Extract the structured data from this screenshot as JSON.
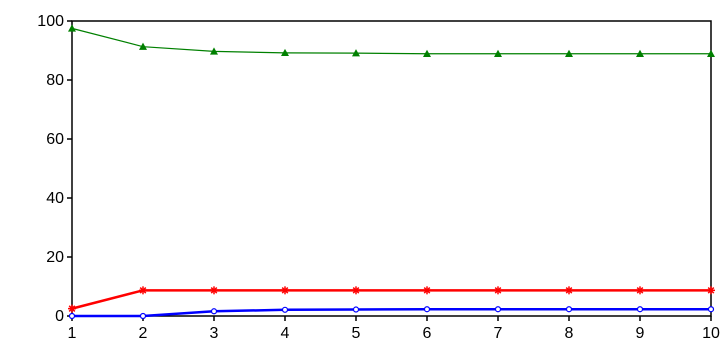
{
  "chart_data": {
    "type": "line",
    "title": "",
    "xlabel": "",
    "ylabel": "",
    "x": [
      1,
      2,
      3,
      4,
      5,
      6,
      7,
      8,
      9,
      10
    ],
    "xlim": [
      1,
      10
    ],
    "ylim": [
      0,
      100
    ],
    "x_ticks": [
      1,
      2,
      3,
      4,
      5,
      6,
      7,
      8,
      9,
      10
    ],
    "y_ticks": [
      0,
      20,
      40,
      60,
      80,
      100
    ],
    "x_tick_labels": [
      "1",
      "2",
      "3",
      "4",
      "5",
      "6",
      "7",
      "8",
      "9",
      "10"
    ],
    "y_tick_labels": [
      "0",
      "20",
      "40",
      "60",
      "80",
      "100"
    ],
    "grid": false,
    "legend": "none",
    "series": [
      {
        "color": "#008000",
        "marker": "triangle",
        "values": [
          97.5,
          91.3,
          89.7,
          89.2,
          89.1,
          88.9,
          88.9,
          88.9,
          88.9,
          88.9
        ]
      },
      {
        "color": "#ff0000",
        "marker": "star",
        "values": [
          2.5,
          8.7,
          8.7,
          8.7,
          8.7,
          8.7,
          8.7,
          8.7,
          8.7,
          8.7
        ]
      },
      {
        "color": "#0000ff",
        "marker": "circle",
        "values": [
          0.0,
          0.0,
          1.6,
          2.1,
          2.2,
          2.3,
          2.3,
          2.3,
          2.3,
          2.3
        ]
      }
    ]
  }
}
